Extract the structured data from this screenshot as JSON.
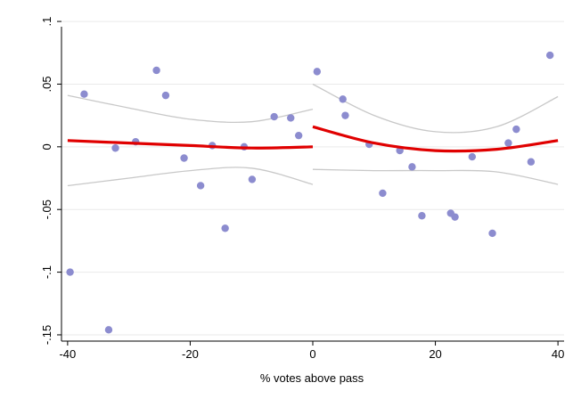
{
  "chart_data": {
    "type": "scatter",
    "title": "",
    "xlabel": "% votes above pass",
    "ylabel": "",
    "xlim": [
      -41,
      41
    ],
    "ylim": [
      -0.155,
      0.11
    ],
    "x_ticks": [
      -40,
      -20,
      0,
      20,
      40
    ],
    "x_tick_labels": [
      "-40",
      "-20",
      "0",
      "20",
      "40"
    ],
    "y_ticks": [
      0.1,
      0.05,
      0,
      -0.05,
      -0.1,
      -0.15
    ],
    "y_tick_labels": [
      ".1",
      ".05",
      "0",
      "-.05",
      "-.1",
      "-.15"
    ],
    "grid": "horizontal",
    "colors": {
      "points": "#8c8ccf",
      "fit": "#e00000",
      "ci": "#c8c8c8",
      "grid": "#eaeaea"
    },
    "points": [
      {
        "x": -39.6,
        "y": -0.1
      },
      {
        "x": -37.3,
        "y": 0.042
      },
      {
        "x": -33.3,
        "y": -0.146
      },
      {
        "x": -32.2,
        "y": -0.001
      },
      {
        "x": -28.9,
        "y": 0.004
      },
      {
        "x": -25.5,
        "y": 0.061
      },
      {
        "x": -24.0,
        "y": 0.041
      },
      {
        "x": -21.0,
        "y": -0.009
      },
      {
        "x": -18.3,
        "y": -0.031
      },
      {
        "x": -16.4,
        "y": 0.001
      },
      {
        "x": -14.3,
        "y": -0.065
      },
      {
        "x": -11.2,
        "y": 0.0
      },
      {
        "x": -9.9,
        "y": -0.026
      },
      {
        "x": -6.3,
        "y": 0.024
      },
      {
        "x": -3.6,
        "y": 0.023
      },
      {
        "x": -2.3,
        "y": 0.009
      },
      {
        "x": 0.7,
        "y": 0.06
      },
      {
        "x": 4.9,
        "y": 0.038
      },
      {
        "x": 5.3,
        "y": 0.025
      },
      {
        "x": 9.2,
        "y": 0.002
      },
      {
        "x": 11.4,
        "y": -0.037
      },
      {
        "x": 14.2,
        "y": -0.003
      },
      {
        "x": 16.2,
        "y": -0.016
      },
      {
        "x": 17.8,
        "y": -0.055
      },
      {
        "x": 22.5,
        "y": -0.053
      },
      {
        "x": 23.2,
        "y": -0.056
      },
      {
        "x": 26.0,
        "y": -0.008
      },
      {
        "x": 29.3,
        "y": -0.069
      },
      {
        "x": 31.9,
        "y": 0.003
      },
      {
        "x": 33.2,
        "y": 0.014
      },
      {
        "x": 35.6,
        "y": -0.012
      },
      {
        "x": 38.7,
        "y": 0.073
      }
    ],
    "fit_left": [
      {
        "x": -40,
        "y": 0.005
      },
      {
        "x": -30,
        "y": 0.003
      },
      {
        "x": -20,
        "y": 0.001
      },
      {
        "x": -10,
        "y": -0.001
      },
      {
        "x": 0,
        "y": 0.0
      }
    ],
    "fit_right": [
      {
        "x": 0,
        "y": 0.016
      },
      {
        "x": 10,
        "y": 0.003
      },
      {
        "x": 20,
        "y": -0.003
      },
      {
        "x": 30,
        "y": -0.002
      },
      {
        "x": 40,
        "y": 0.005
      }
    ],
    "ci_left_upper": [
      {
        "x": -40,
        "y": 0.041
      },
      {
        "x": -30,
        "y": 0.031
      },
      {
        "x": -20,
        "y": 0.022
      },
      {
        "x": -10,
        "y": 0.02
      },
      {
        "x": 0,
        "y": 0.03
      }
    ],
    "ci_left_lower": [
      {
        "x": -40,
        "y": -0.031
      },
      {
        "x": -30,
        "y": -0.025
      },
      {
        "x": -20,
        "y": -0.019
      },
      {
        "x": -10,
        "y": -0.017
      },
      {
        "x": 0,
        "y": -0.03
      }
    ],
    "ci_right_upper": [
      {
        "x": 0,
        "y": 0.05
      },
      {
        "x": 10,
        "y": 0.025
      },
      {
        "x": 20,
        "y": 0.012
      },
      {
        "x": 30,
        "y": 0.016
      },
      {
        "x": 40,
        "y": 0.04
      }
    ],
    "ci_right_lower": [
      {
        "x": 0,
        "y": -0.018
      },
      {
        "x": 10,
        "y": -0.019
      },
      {
        "x": 20,
        "y": -0.019
      },
      {
        "x": 30,
        "y": -0.02
      },
      {
        "x": 40,
        "y": -0.03
      }
    ]
  }
}
